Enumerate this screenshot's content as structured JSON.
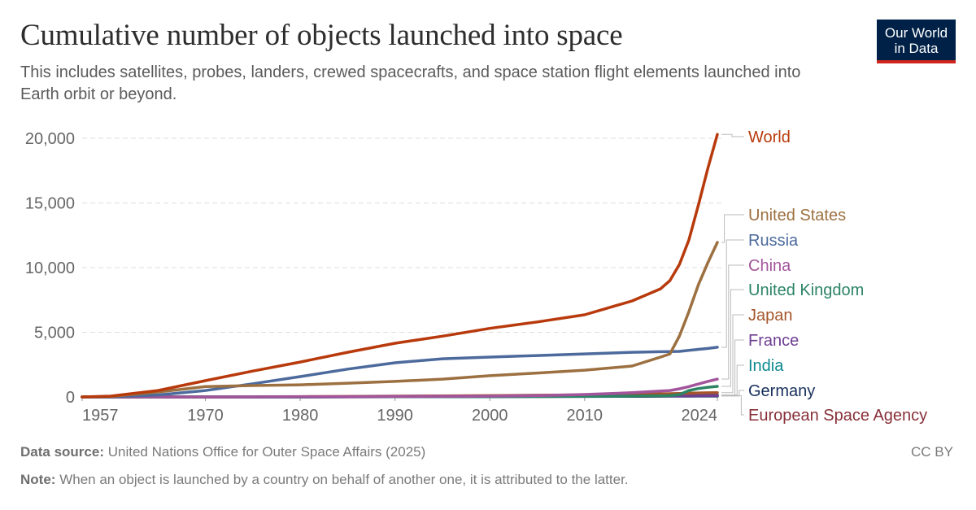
{
  "header": {
    "title": "Cumulative number of objects launched into space",
    "subtitle": "This includes satellites, probes, landers, crewed spacecrafts, and space station flight elements launched into Earth orbit or beyond.",
    "logo": "Our World in Data"
  },
  "footer": {
    "source_label": "Data source:",
    "source": "United Nations Office for Outer Space Affairs (2025)",
    "note_label": "Note:",
    "note": "When an object is launched by a country on behalf of another one, it is attributed to the latter.",
    "license": "CC BY"
  },
  "chart_data": {
    "type": "line",
    "title": "Cumulative number of objects launched into space",
    "xlim": [
      1957,
      2024
    ],
    "ylim": [
      0,
      20000
    ],
    "x_ticks": [
      1957,
      1970,
      1980,
      1990,
      2000,
      2010,
      2024
    ],
    "y_ticks": [
      0,
      5000,
      10000,
      15000,
      20000
    ],
    "y_tick_labels": [
      "0",
      "5,000",
      "10,000",
      "15,000",
      "20,000"
    ],
    "grid": "horizontal dashed",
    "legend": "right, line-end labels",
    "x": [
      1957,
      1960,
      1965,
      1970,
      1975,
      1980,
      1985,
      1990,
      1995,
      2000,
      2005,
      2010,
      2015,
      2018,
      2019,
      2020,
      2021,
      2022,
      2023,
      2024
    ],
    "series": [
      {
        "name": "World",
        "color": "#b83a0c",
        "values": [
          2,
          60,
          500,
          1260,
          2000,
          2700,
          3450,
          4150,
          4700,
          5300,
          5800,
          6350,
          7420,
          8360,
          9000,
          10250,
          12140,
          14840,
          17670,
          20300
        ]
      },
      {
        "name": "United States",
        "color": "#9c7040",
        "values": [
          1,
          40,
          380,
          800,
          880,
          940,
          1060,
          1200,
          1380,
          1640,
          1850,
          2070,
          2390,
          3080,
          3330,
          4720,
          6600,
          8680,
          10380,
          11950
        ]
      },
      {
        "name": "Russia",
        "color": "#4c6a9c",
        "values": [
          1,
          15,
          150,
          500,
          1020,
          1570,
          2150,
          2640,
          2950,
          3080,
          3200,
          3330,
          3450,
          3500,
          3510,
          3520,
          3600,
          3680,
          3750,
          3840
        ]
      },
      {
        "name": "China",
        "color": "#a2559c",
        "values": [
          0,
          0,
          0,
          1,
          5,
          10,
          20,
          35,
          45,
          60,
          100,
          190,
          330,
          450,
          500,
          630,
          800,
          1000,
          1200,
          1380
        ]
      },
      {
        "name": "United Kingdom",
        "color": "#2c8465",
        "values": [
          0,
          0,
          2,
          5,
          8,
          12,
          18,
          25,
          30,
          40,
          45,
          55,
          70,
          90,
          100,
          180,
          500,
          650,
          750,
          820
        ]
      },
      {
        "name": "Japan",
        "color": "#a5552b",
        "values": [
          0,
          0,
          0,
          1,
          10,
          25,
          40,
          60,
          80,
          100,
          130,
          160,
          200,
          230,
          250,
          270,
          290,
          310,
          320,
          330
        ]
      },
      {
        "name": "France",
        "color": "#6d3e91",
        "values": [
          0,
          0,
          1,
          3,
          8,
          12,
          18,
          25,
          35,
          45,
          55,
          65,
          75,
          80,
          85,
          90,
          95,
          100,
          105,
          110
        ]
      },
      {
        "name": "India",
        "color": "#0f8a8f",
        "values": [
          0,
          0,
          0,
          0,
          1,
          3,
          6,
          10,
          15,
          25,
          35,
          50,
          70,
          90,
          100,
          110,
          120,
          130,
          140,
          150
        ]
      },
      {
        "name": "Germany",
        "color": "#18305c",
        "values": [
          0,
          0,
          0,
          2,
          5,
          8,
          10,
          15,
          20,
          25,
          30,
          40,
          50,
          55,
          60,
          62,
          65,
          68,
          70,
          72
        ]
      },
      {
        "name": "European Space Agency",
        "color": "#883039",
        "values": [
          0,
          0,
          0,
          0,
          1,
          3,
          8,
          15,
          25,
          35,
          45,
          55,
          65,
          75,
          80,
          85,
          90,
          95,
          100,
          105
        ]
      }
    ]
  }
}
